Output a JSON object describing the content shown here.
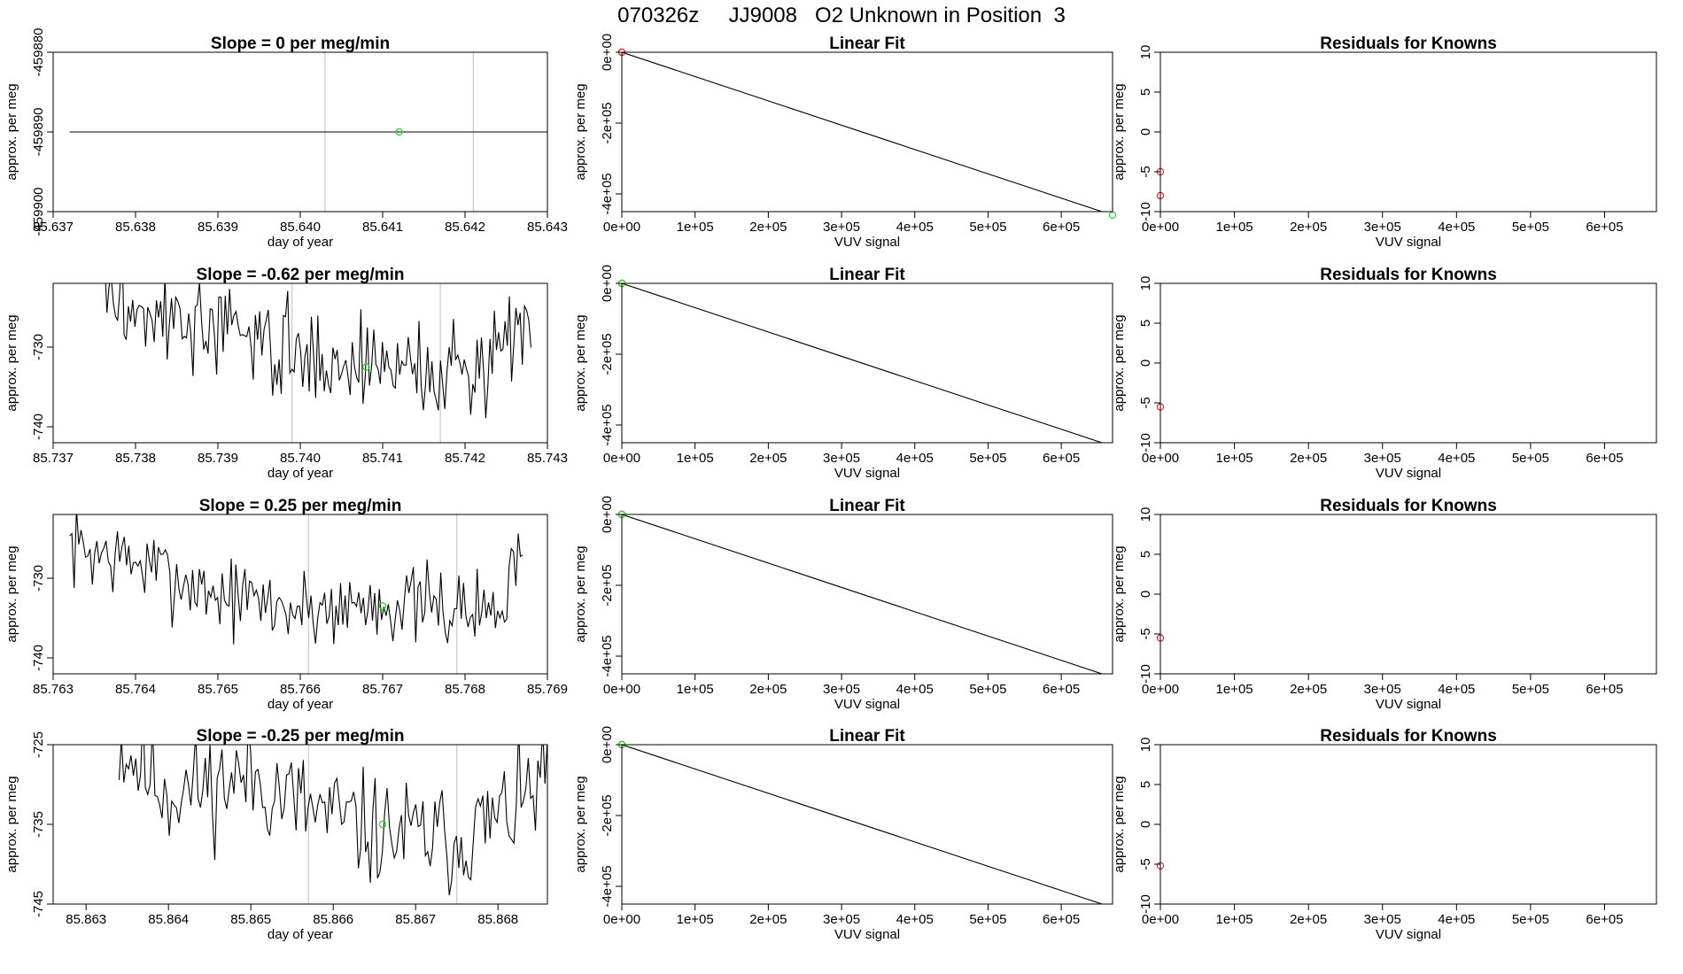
{
  "page": {
    "title": "070326z     JJ9008   O2 Unknown in Position  3"
  },
  "chart_data": [
    {
      "type": "line",
      "panel": "time-series",
      "title": "Slope =  0  per meg/min",
      "xlabel": "day of year",
      "ylabel": "approx. per meg",
      "xlim": [
        85.637,
        85.643
      ],
      "ylim": [
        -459900,
        -459880
      ],
      "xticks": [
        85.637,
        85.638,
        85.639,
        85.64,
        85.641,
        85.642,
        85.643
      ],
      "xtick_labels": [
        "85.637",
        "85.638",
        "85.639",
        "85.640",
        "85.641",
        "85.642",
        "85.643"
      ],
      "yticks": [
        -459900,
        -459890,
        -459880
      ],
      "ytick_labels": [
        "-459900",
        "-459890",
        "-459880"
      ],
      "vlines": [
        85.6403,
        85.6421
      ],
      "series": [
        {
          "color": "#000000",
          "x": [
            85.6372,
            85.6432
          ],
          "y": [
            -459890,
            -459890
          ]
        }
      ],
      "points": [
        {
          "x": 85.6412,
          "y": -459890,
          "color": "#33cc33"
        }
      ]
    },
    {
      "type": "line",
      "panel": "linear-fit",
      "title": "Linear Fit",
      "xlabel": "VUV signal",
      "ylabel": "approx. per meg",
      "xlim": [
        0,
        670000
      ],
      "ylim": [
        -450000,
        0
      ],
      "xticks": [
        0,
        100000,
        200000,
        300000,
        400000,
        500000,
        600000
      ],
      "xtick_labels": [
        "0e+00",
        "1e+05",
        "2e+05",
        "3e+05",
        "4e+05",
        "5e+05",
        "6e+05"
      ],
      "yticks": [
        0,
        -200000,
        -400000
      ],
      "ytick_labels": [
        "0e+00",
        "-2e+05",
        "-4e+05"
      ],
      "series": [
        {
          "color": "#000000",
          "x": [
            0,
            670000
          ],
          "y": [
            0,
            -459890
          ]
        }
      ],
      "points": [
        {
          "x": 0,
          "y": 0,
          "color": "#cc3333"
        },
        {
          "x": 0,
          "y": 0,
          "color": "#cc3333"
        },
        {
          "x": 670000,
          "y": -459890,
          "color": "#33cc33"
        }
      ]
    },
    {
      "type": "scatter",
      "panel": "residuals",
      "title": "Residuals for Knowns",
      "xlabel": "VUV signal",
      "ylabel": "approx. per meg",
      "xlim": [
        0,
        670000
      ],
      "ylim": [
        -10,
        10
      ],
      "xticks": [
        0,
        100000,
        200000,
        300000,
        400000,
        500000,
        600000
      ],
      "xtick_labels": [
        "0e+00",
        "1e+05",
        "2e+05",
        "3e+05",
        "4e+05",
        "5e+05",
        "6e+05"
      ],
      "yticks": [
        -10,
        -5,
        0,
        5,
        10
      ],
      "ytick_labels": [
        "-10",
        "-5",
        "0",
        "5",
        "10"
      ],
      "points": [
        {
          "x": 0,
          "y": -5,
          "color": "#cc3333"
        },
        {
          "x": 0,
          "y": -8,
          "color": "#cc3333"
        }
      ]
    },
    {
      "type": "line",
      "panel": "time-series",
      "title": "Slope =  -0.62  per meg/min",
      "xlabel": "day of year",
      "ylabel": "approx. per meg",
      "xlim": [
        85.737,
        85.743
      ],
      "ylim": [
        -742,
        -722
      ],
      "xticks": [
        85.737,
        85.738,
        85.739,
        85.74,
        85.741,
        85.742,
        85.743
      ],
      "xtick_labels": [
        "85.737",
        "85.738",
        "85.739",
        "85.740",
        "85.741",
        "85.742",
        "85.743"
      ],
      "yticks": [
        -740,
        -730
      ],
      "ytick_labels": [
        "-740",
        "-730"
      ],
      "vlines": [
        85.7399,
        85.7417
      ],
      "series": [
        {
          "color": "#000000",
          "noise": {
            "seed": 3,
            "start": 85.7376,
            "end": 85.7428,
            "n": 200,
            "segments": [
              [
                85.7376,
                -722
              ],
              [
                85.7377,
                -724
              ],
              [
                85.7385,
                -727
              ],
              [
                85.7395,
                -729
              ],
              [
                85.7399,
                -731
              ],
              [
                85.7405,
                -732
              ],
              [
                85.7412,
                -732
              ],
              [
                85.7418,
                -734
              ],
              [
                85.7422,
                -732
              ],
              [
                85.7428,
                -726
              ]
            ],
            "amp": 3
          }
        }
      ],
      "points": [
        {
          "x": 85.7408,
          "y": -732.5,
          "color": "#33cc33"
        }
      ]
    },
    {
      "type": "line",
      "panel": "linear-fit",
      "title": "Linear Fit",
      "xlabel": "VUV signal",
      "ylabel": "approx. per meg",
      "xlim": [
        0,
        670000
      ],
      "ylim": [
        -450000,
        0
      ],
      "xticks": [
        0,
        100000,
        200000,
        300000,
        400000,
        500000,
        600000
      ],
      "xtick_labels": [
        "0e+00",
        "1e+05",
        "2e+05",
        "3e+05",
        "4e+05",
        "5e+05",
        "6e+05"
      ],
      "yticks": [
        0,
        -200000,
        -400000
      ],
      "ytick_labels": [
        "0e+00",
        "-2e+05",
        "-4e+05"
      ],
      "series": [
        {
          "color": "#000000",
          "x": [
            0,
            670000
          ],
          "y": [
            0,
            -459890
          ]
        }
      ],
      "points": [
        {
          "x": 0,
          "y": 0,
          "color": "#cc3333"
        },
        {
          "x": 0,
          "y": 0,
          "color": "#33cc33"
        }
      ]
    },
    {
      "type": "scatter",
      "panel": "residuals",
      "title": "Residuals for Knowns",
      "xlabel": "VUV signal",
      "ylabel": "approx. per meg",
      "xlim": [
        0,
        670000
      ],
      "ylim": [
        -10,
        10
      ],
      "xticks": [
        0,
        100000,
        200000,
        300000,
        400000,
        500000,
        600000
      ],
      "xtick_labels": [
        "0e+00",
        "1e+05",
        "2e+05",
        "3e+05",
        "4e+05",
        "5e+05",
        "6e+05"
      ],
      "yticks": [
        -10,
        -5,
        0,
        5,
        10
      ],
      "ytick_labels": [
        "-10",
        "-5",
        "0",
        "5",
        "10"
      ],
      "points": [
        {
          "x": 0,
          "y": -5.5,
          "color": "#cc3333"
        }
      ]
    },
    {
      "type": "line",
      "panel": "time-series",
      "title": "Slope =  0.25  per meg/min",
      "xlabel": "day of year",
      "ylabel": "approx. per meg",
      "xlim": [
        85.763,
        85.769
      ],
      "ylim": [
        -742,
        -722
      ],
      "xticks": [
        85.763,
        85.764,
        85.765,
        85.766,
        85.767,
        85.768,
        85.769
      ],
      "xtick_labels": [
        "85.763",
        "85.764",
        "85.765",
        "85.766",
        "85.767",
        "85.768",
        "85.769"
      ],
      "yticks": [
        -740,
        -730
      ],
      "ytick_labels": [
        "-740",
        "-730"
      ],
      "vlines": [
        85.7661,
        85.7679
      ],
      "series": [
        {
          "color": "#000000",
          "noise": {
            "seed": 7,
            "start": 85.7632,
            "end": 85.7687,
            "n": 200,
            "segments": [
              [
                85.7632,
                -726
              ],
              [
                85.764,
                -728
              ],
              [
                85.765,
                -732
              ],
              [
                85.766,
                -734
              ],
              [
                85.767,
                -733
              ],
              [
                85.768,
                -734
              ],
              [
                85.7685,
                -734
              ],
              [
                85.7687,
                -722
              ]
            ],
            "amp": 2.5
          }
        }
      ],
      "points": [
        {
          "x": 85.767,
          "y": -733.5,
          "color": "#33cc33"
        }
      ]
    },
    {
      "type": "line",
      "panel": "linear-fit",
      "title": "Linear Fit",
      "xlabel": "VUV signal",
      "ylabel": "approx. per meg",
      "xlim": [
        0,
        670000
      ],
      "ylim": [
        -450000,
        0
      ],
      "xticks": [
        0,
        100000,
        200000,
        300000,
        400000,
        500000,
        600000
      ],
      "xtick_labels": [
        "0e+00",
        "1e+05",
        "2e+05",
        "3e+05",
        "4e+05",
        "5e+05",
        "6e+05"
      ],
      "yticks": [
        0,
        -200000,
        -400000
      ],
      "ytick_labels": [
        "0e+00",
        "-2e+05",
        "-4e+05"
      ],
      "series": [
        {
          "color": "#000000",
          "x": [
            0,
            670000
          ],
          "y": [
            0,
            -459890
          ]
        }
      ],
      "points": [
        {
          "x": 0,
          "y": 0,
          "color": "#cc3333"
        },
        {
          "x": 0,
          "y": 0,
          "color": "#33cc33"
        }
      ]
    },
    {
      "type": "scatter",
      "panel": "residuals",
      "title": "Residuals for Knowns",
      "xlabel": "VUV signal",
      "ylabel": "approx. per meg",
      "xlim": [
        0,
        670000
      ],
      "ylim": [
        -10,
        10
      ],
      "xticks": [
        0,
        100000,
        200000,
        300000,
        400000,
        500000,
        600000
      ],
      "xtick_labels": [
        "0e+00",
        "1e+05",
        "2e+05",
        "3e+05",
        "4e+05",
        "5e+05",
        "6e+05"
      ],
      "yticks": [
        -10,
        -5,
        0,
        5,
        10
      ],
      "ytick_labels": [
        "-10",
        "-5",
        "0",
        "5",
        "10"
      ],
      "points": [
        {
          "x": 0,
          "y": -5.5,
          "color": "#cc3333"
        }
      ]
    },
    {
      "type": "line",
      "panel": "time-series",
      "title": "Slope =  -0.25  per meg/min",
      "xlabel": "day of year",
      "ylabel": "approx. per meg",
      "xlim": [
        85.8626,
        85.8686
      ],
      "ylim": [
        -745,
        -725
      ],
      "xticks": [
        85.863,
        85.864,
        85.865,
        85.866,
        85.867,
        85.868
      ],
      "xtick_labels": [
        "85.863",
        "85.864",
        "85.865",
        "85.866",
        "85.867",
        "85.868"
      ],
      "yticks": [
        -745,
        -735,
        -725
      ],
      "ytick_labels": [
        "-745",
        "-735",
        "-725"
      ],
      "vlines": [
        85.8657,
        85.8675
      ],
      "series": [
        {
          "color": "#000000",
          "noise": {
            "seed": 11,
            "start": 85.8634,
            "end": 85.8686,
            "n": 180,
            "segments": [
              [
                85.8634,
                -725
              ],
              [
                85.864,
                -731
              ],
              [
                85.865,
                -729
              ],
              [
                85.8657,
                -733
              ],
              [
                85.8665,
                -736
              ],
              [
                85.8675,
                -737
              ],
              [
                85.8682,
                -733
              ],
              [
                85.8686,
                -729
              ]
            ],
            "amp": 3.5
          }
        }
      ],
      "points": [
        {
          "x": 85.8666,
          "y": -735,
          "color": "#33cc33"
        }
      ]
    },
    {
      "type": "line",
      "panel": "linear-fit",
      "title": "Linear Fit",
      "xlabel": "VUV signal",
      "ylabel": "approx. per meg",
      "xlim": [
        0,
        670000
      ],
      "ylim": [
        -450000,
        0
      ],
      "xticks": [
        0,
        100000,
        200000,
        300000,
        400000,
        500000,
        600000
      ],
      "xtick_labels": [
        "0e+00",
        "1e+05",
        "2e+05",
        "3e+05",
        "4e+05",
        "5e+05",
        "6e+05"
      ],
      "yticks": [
        0,
        -200000,
        -400000
      ],
      "ytick_labels": [
        "0e+00",
        "-2e+05",
        "-4e+05"
      ],
      "series": [
        {
          "color": "#000000",
          "x": [
            0,
            670000
          ],
          "y": [
            0,
            -459890
          ]
        }
      ],
      "points": [
        {
          "x": 0,
          "y": 0,
          "color": "#cc3333"
        },
        {
          "x": 0,
          "y": 0,
          "color": "#33cc33"
        }
      ]
    },
    {
      "type": "scatter",
      "panel": "residuals",
      "title": "Residuals for Knowns",
      "xlabel": "VUV signal",
      "ylabel": "approx. per meg",
      "xlim": [
        0,
        670000
      ],
      "ylim": [
        -10,
        10
      ],
      "xticks": [
        0,
        100000,
        200000,
        300000,
        400000,
        500000,
        600000
      ],
      "xtick_labels": [
        "0e+00",
        "1e+05",
        "2e+05",
        "3e+05",
        "4e+05",
        "5e+05",
        "6e+05"
      ],
      "yticks": [
        -10,
        -5,
        0,
        5,
        10
      ],
      "ytick_labels": [
        "-10",
        "-5",
        "0",
        "5",
        "10"
      ],
      "points": [
        {
          "x": 0,
          "y": -5.2,
          "color": "#cc3333"
        }
      ]
    }
  ]
}
